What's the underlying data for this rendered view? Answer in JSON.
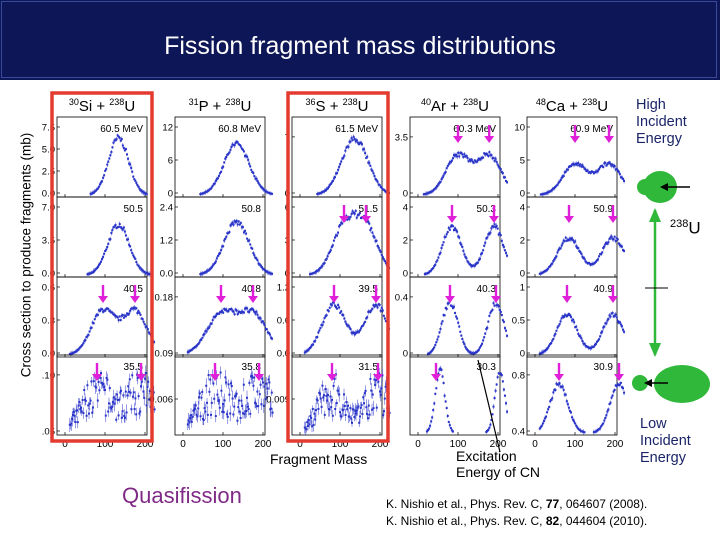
{
  "title": "Fission fragment mass distributions",
  "y_axis_label": "Cross section to produce fragments (mb)",
  "x_axis_label": "Fragment Mass",
  "excitation_label": [
    "Excitation",
    "Energy of CN"
  ],
  "quasifission_label": "Quasifission",
  "high_energy_label": [
    "High",
    "Incident",
    "Energy"
  ],
  "low_energy_label": [
    "Low",
    "Incident",
    "Energy"
  ],
  "uranium_label": {
    "mass": "238",
    "symbol": "U"
  },
  "references": [
    {
      "pre": "K. Nishio et al., Phys. Rev. C, ",
      "vol": "77",
      "post": ", 064607 (2008)."
    },
    {
      "pre": "K. Nishio et al., Phys. Rev. C, ",
      "vol": "82",
      "post": ", 044604 (2010)."
    }
  ],
  "colors": {
    "banner": "#0d1656",
    "data": "#2a35c8",
    "arrow": "#e020d8",
    "highlight": "#e33b2f",
    "quasifission": "#7f2a86",
    "nucleus": "#2fb83a"
  },
  "chart_data": {
    "type": "scatter",
    "x_ticks": [
      "0",
      "100",
      "200"
    ],
    "xlim": [
      0,
      250
    ],
    "columns": [
      {
        "reaction": {
          "proj_mass": "30",
          "proj": "Si",
          "target_mass": "238",
          "target": "U"
        },
        "panels": [
          {
            "energy": "60.5 MeV",
            "y_ticks": [
              "0.0",
              "2.5",
              "5.0",
              "7.5"
            ],
            "ymax": 8.2,
            "shape": "single",
            "center": 134,
            "width": 25,
            "peak": 6.3,
            "arrows": 0
          },
          {
            "energy": "50.5",
            "y_ticks": [
              "0.0",
              "3.5",
              "7.0"
            ],
            "ymax": 8.2,
            "shape": "single",
            "center": 134,
            "width": 27,
            "peak": 5.6,
            "arrows": 0
          },
          {
            "energy": "40.5",
            "y_ticks": [
              "0.0",
              "0.3",
              "0.6"
            ],
            "ymax": 0.75,
            "shape": "double",
            "centers": [
              95,
              175
            ],
            "width": 30,
            "peak": 0.45,
            "arrows": 2
          },
          {
            "energy": "35.5",
            "y_ticks": [
              ".05",
              ".10"
            ],
            "ymax": 0.14,
            "shape": "noisy",
            "centers": [
              80,
              190
            ],
            "width": 38,
            "peak": 0.08,
            "arrows": 2
          }
        ]
      },
      {
        "reaction": {
          "proj_mass": "31",
          "proj": "P",
          "target_mass": "238",
          "target": "U"
        },
        "panels": [
          {
            "energy": "60.8 MeV",
            "y_ticks": [
              "0",
              "6",
              "12"
            ],
            "ymax": 13,
            "shape": "single",
            "center": 134,
            "width": 32,
            "peak": 9.0,
            "arrows": 0
          },
          {
            "energy": "50.8",
            "y_ticks": [
              "0.0",
              "1.2",
              "2.4"
            ],
            "ymax": 2.8,
            "shape": "single",
            "center": 134,
            "width": 32,
            "peak": 2.0,
            "arrows": 0
          },
          {
            "energy": "40.8",
            "y_ticks": [
              "0.09",
              "0.18"
            ],
            "ymax": 0.24,
            "shape": "double",
            "centers": [
              95,
              175
            ],
            "width": 36,
            "peak": 0.13,
            "arrows": 2
          },
          {
            "energy": "35.8",
            "y_ticks": [
              "0.006"
            ],
            "ymax": 0.012,
            "shape": "noisy",
            "centers": [
              80,
              190
            ],
            "width": 38,
            "peak": 0.007,
            "arrows": 2
          }
        ]
      },
      {
        "reaction": {
          "proj_mass": "36",
          "proj": "S",
          "target_mass": "238",
          "target": "U"
        },
        "panels": [
          {
            "energy": "61.5 MeV",
            "y_ticks": [
              "0",
              "7"
            ],
            "ymax": 7.5,
            "shape": "single",
            "center": 137,
            "width": 33,
            "peak": 5.7,
            "arrows": 0
          },
          {
            "energy": "51.5",
            "y_ticks": [
              "0",
              "3",
              "6"
            ],
            "ymax": 8.0,
            "shape": "double",
            "centers": [
              110,
              165
            ],
            "width": 30,
            "peak": 5.0,
            "arrows": 2
          },
          {
            "energy": "39.5",
            "y_ticks": [
              "0.0",
              "0.6",
              "1.2"
            ],
            "ymax": 1.4,
            "shape": "double",
            "centers": [
              85,
              190
            ],
            "width": 30,
            "peak": 0.95,
            "arrows": 2
          },
          {
            "energy": "31.5",
            "y_ticks": [
              "0.009"
            ],
            "ymax": 0.016,
            "shape": "noisy",
            "centers": [
              80,
              195
            ],
            "width": 35,
            "peak": 0.009,
            "arrows": 2
          }
        ]
      },
      {
        "reaction": {
          "proj_mass": "40",
          "proj": "Ar",
          "target_mass": "238",
          "target": "U"
        },
        "panels": [
          {
            "energy": "60.3 MeV",
            "y_ticks": [
              "0",
              "3.5"
            ],
            "ymax": 6.0,
            "shape": "double",
            "centers": [
              100,
              178
            ],
            "width": 30,
            "peak": 3.2,
            "arrows": 2
          },
          {
            "energy": "50.3",
            "y_ticks": [
              "0",
              "2",
              "4"
            ],
            "ymax": 5.2,
            "shape": "double",
            "centers": [
              85,
              190
            ],
            "width": 24,
            "peak": 3.4,
            "arrows": 2
          },
          {
            "energy": "40.3",
            "y_ticks": [
              "0",
              "0.4"
            ],
            "ymax": 0.85,
            "shape": "double",
            "centers": [
              80,
              195
            ],
            "width": 20,
            "peak": 0.6,
            "arrows": 2
          },
          {
            "energy": "30.3",
            "y_ticks": [],
            "ymax": 1.0,
            "shape": "double",
            "centers": [
              55,
              205
            ],
            "width": 12,
            "peak": 0.85,
            "arrows": 1
          }
        ]
      },
      {
        "reaction": {
          "proj_mass": "48",
          "proj": "Ca",
          "target_mass": "238",
          "target": "U"
        },
        "panels": [
          {
            "energy": "60.9 MeV",
            "y_ticks": [
              "0",
              "5",
              "10"
            ],
            "ymax": 12,
            "shape": "double",
            "centers": [
              100,
              185
            ],
            "width": 30,
            "peak": 5.0,
            "arrows": 2
          },
          {
            "energy": "50.9",
            "y_ticks": [
              "0",
              "2",
              "4"
            ],
            "ymax": 6.0,
            "shape": "double",
            "centers": [
              85,
              195
            ],
            "width": 28,
            "peak": 3.0,
            "arrows": 2
          },
          {
            "energy": "40.9",
            "y_ticks": [
              "0",
              "0.5",
              "1"
            ],
            "ymax": 1.2,
            "shape": "double",
            "centers": [
              80,
              195
            ],
            "width": 26,
            "peak": 0.65,
            "arrows": 2
          },
          {
            "energy": "30.9",
            "y_ticks": [
              "0.4",
              "0.8"
            ],
            "ymax": 0.9,
            "shape": "double",
            "centers": [
              60,
              210
            ],
            "width": 22,
            "peak": 0.6,
            "arrows": 2
          }
        ]
      }
    ]
  }
}
